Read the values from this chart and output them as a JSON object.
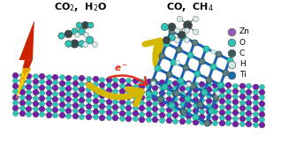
{
  "bg_color": "#ffffff",
  "legend_items": [
    {
      "label": "Zn",
      "color": "#9b59b6"
    },
    {
      "label": "O",
      "color": "#2ec4b6"
    },
    {
      "label": "C",
      "color": "#3a5a5a"
    },
    {
      "label": "H",
      "color": "#d0e8e8"
    },
    {
      "label": "Ti",
      "color": "#1a6ab0"
    }
  ],
  "text_co2": "CO$_2$,  H$_2$O",
  "text_co": "CO,  CH$_4$",
  "text_e": "e$^-$",
  "purple": "#7020a0",
  "teal": "#2ec4b6",
  "blue_mxene": "#1a5fb4",
  "gray_mxene": "#5a8080",
  "white_h": "#d8ecec",
  "dark_c": "#384848",
  "arrow_yellow": "#d4b800",
  "arrow_red": "#e03020",
  "lightning_top": "#cc2200",
  "lightning_bot": "#f0d000"
}
